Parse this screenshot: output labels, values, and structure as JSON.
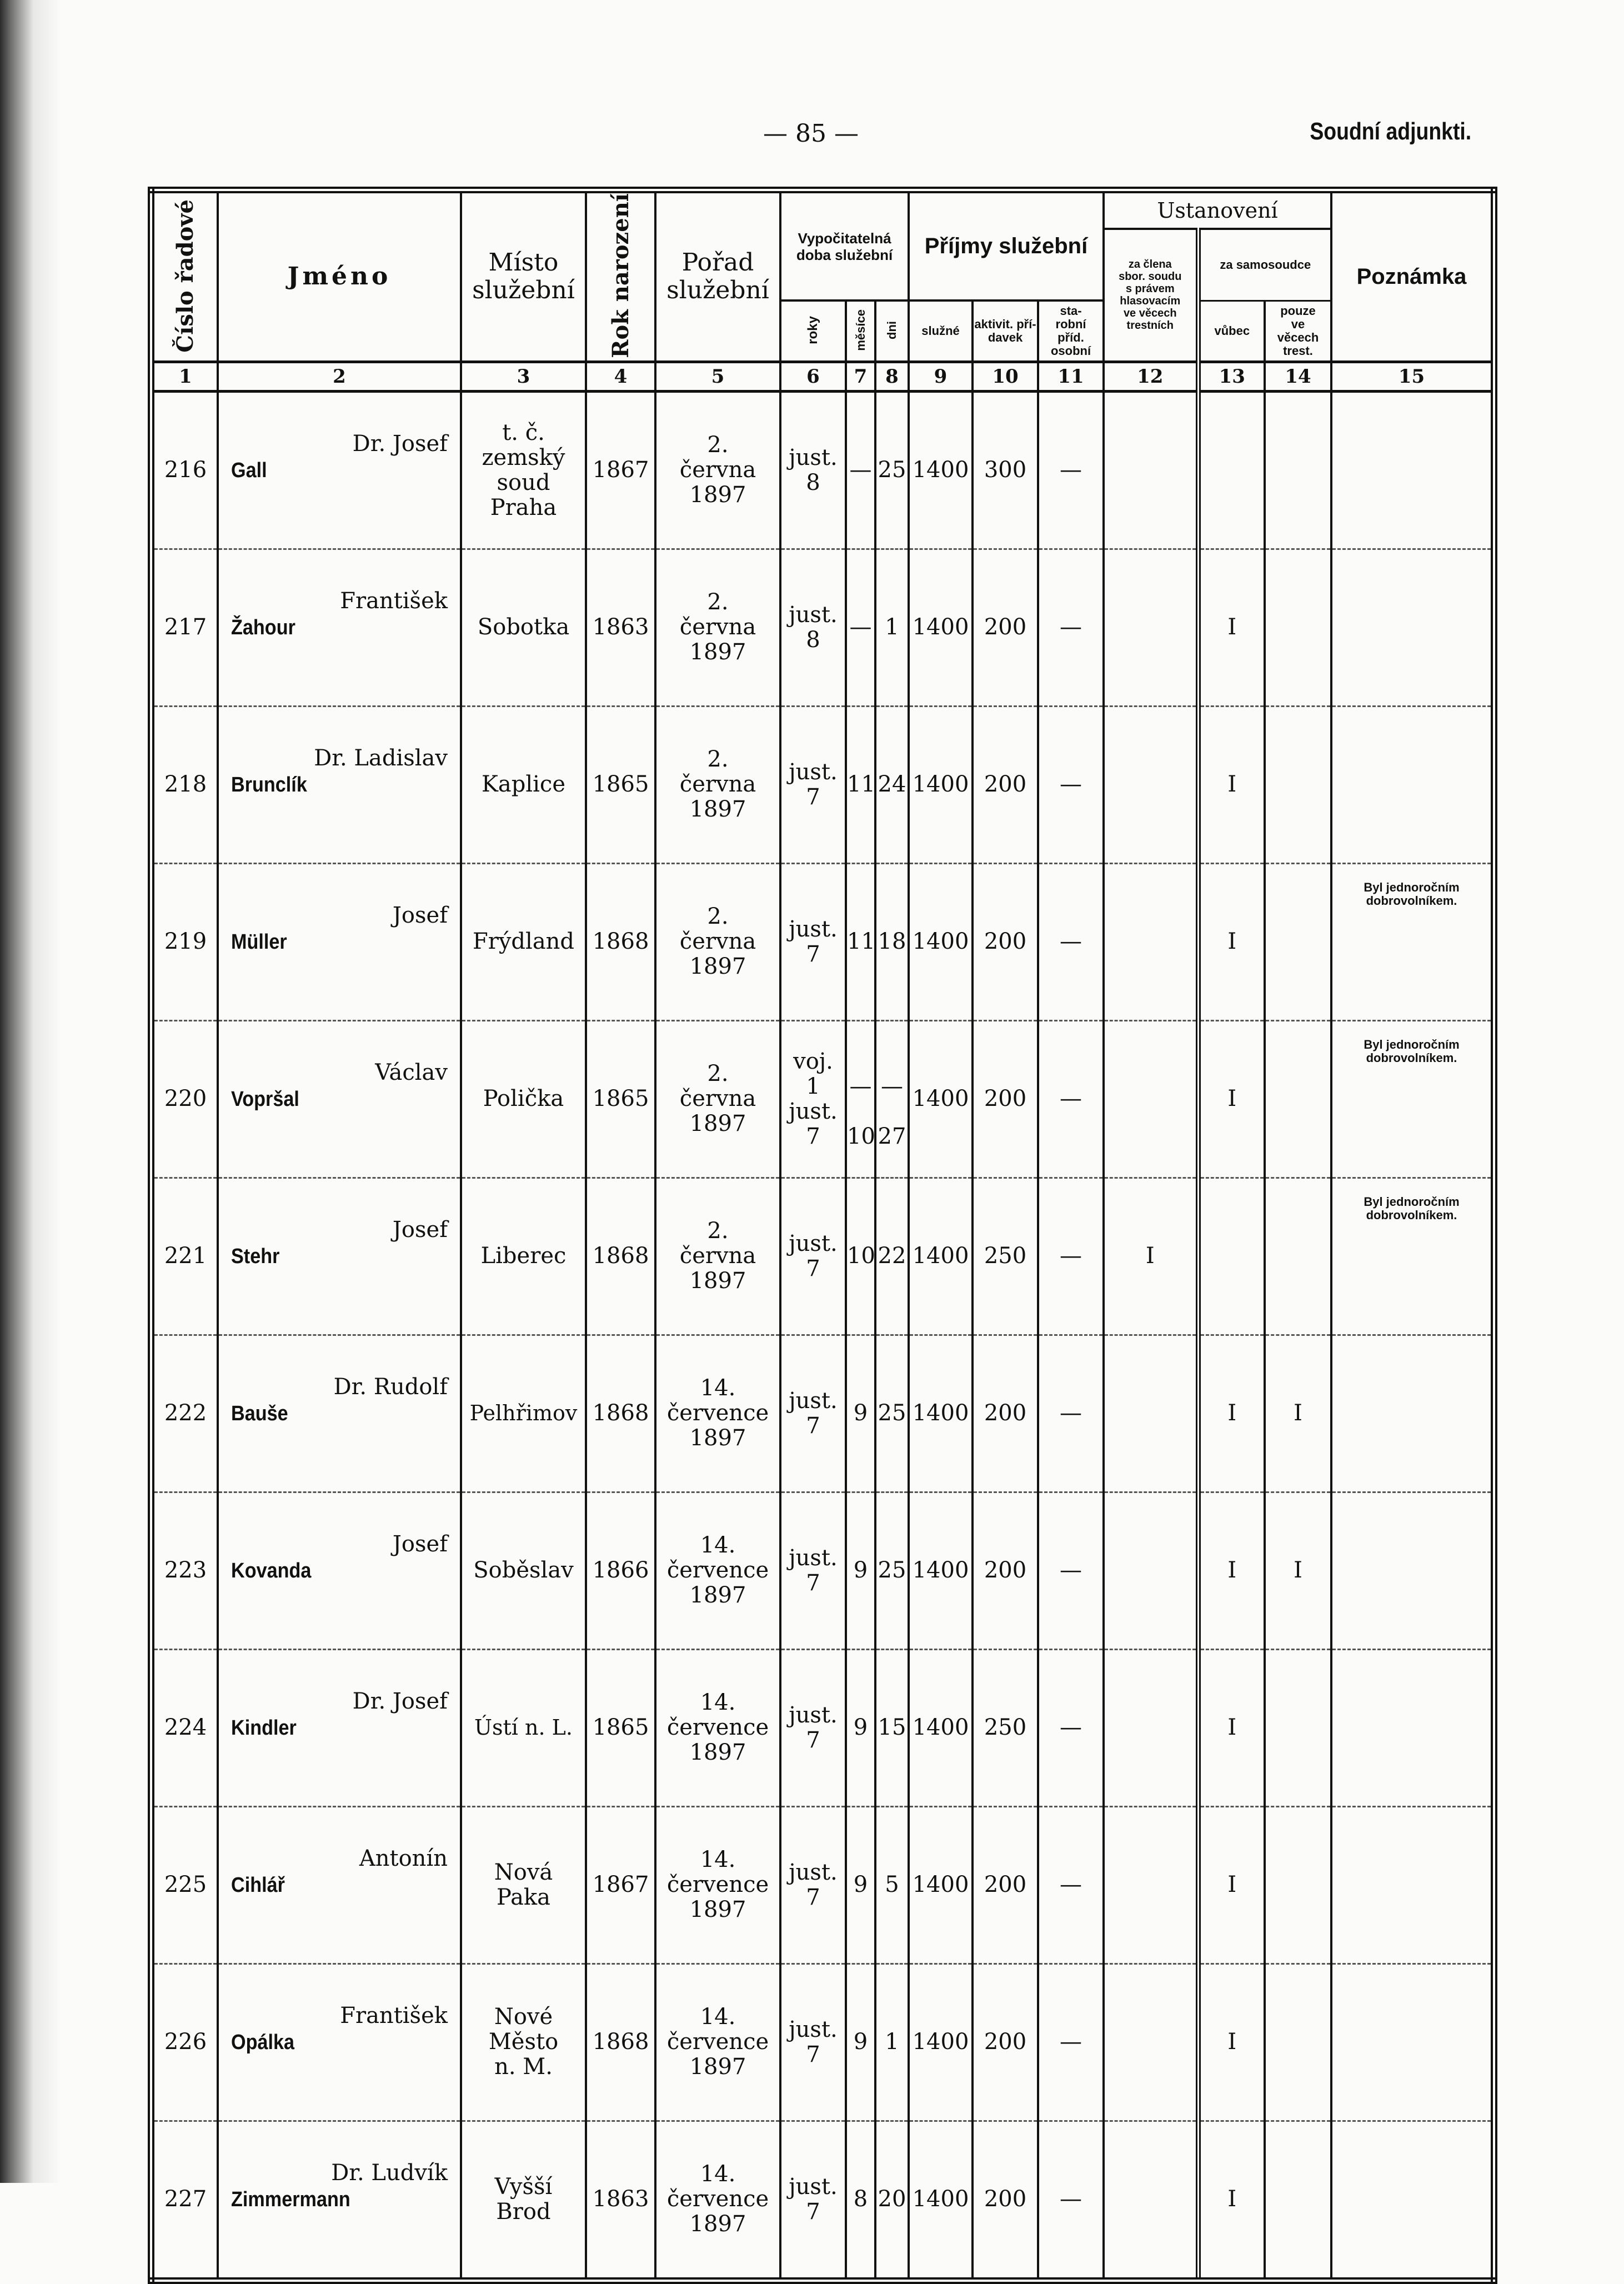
{
  "page": {
    "number": "— 85 —",
    "running_head": "Soudní adjunkti."
  },
  "header": {
    "c1": "Číslo řadové",
    "c2": "Jméno",
    "c3": "Místo\nslužební",
    "c4": "Rok narození",
    "c5": "Pořad\nslužební",
    "c6_8": "Vypočitatelná doba služební",
    "c6": "roky",
    "c7": "měsíce",
    "c8": "dni",
    "c9_11": "Příjmy služební",
    "c9": "služné",
    "c10": "aktivit. pří-\ndavek",
    "c11": "sta-\nrobní\npříd.\nosobní",
    "c12_14": "Ustanovení",
    "c12": "za člena\nsbor. soudu\ns právem\nhlasovacím\nve věcech\ntrestních",
    "c13_14": "za samosoudce",
    "c13": "vůbec",
    "c14": "pouze\nve\nvěcech\ntrest.",
    "c15": "Poznámka"
  },
  "column_numbers": [
    "1",
    "2",
    "3",
    "4",
    "5",
    "6",
    "7",
    "8",
    "9",
    "10",
    "11",
    "12",
    "13",
    "14",
    "15"
  ],
  "rows": [
    {
      "no": "216",
      "first": "Dr. Josef",
      "last": "Gall",
      "place": "t. č.\nzemský\nsoud\nPraha",
      "born": "1867",
      "order": "2.\nčervna\n1897",
      "years": "just.\n8",
      "months": "—",
      "days": "25",
      "salary": "1400",
      "activity": "300",
      "personal": "—",
      "senate": "",
      "judge": "",
      "criminal": "",
      "note": ""
    },
    {
      "no": "217",
      "first": "František",
      "last": "Žahour",
      "place": "Sobotka",
      "born": "1863",
      "order": "2.\nčervna\n1897",
      "years": "just.\n8",
      "months": "—",
      "days": "1",
      "salary": "1400",
      "activity": "200",
      "personal": "—",
      "senate": "",
      "judge": "I",
      "criminal": "",
      "note": ""
    },
    {
      "no": "218",
      "first": "Dr. Ladislav",
      "last": "Brunclík",
      "place": "Kaplice",
      "born": "1865",
      "order": "2.\nčervna\n1897",
      "years": "just.\n7",
      "months": "11",
      "days": "24",
      "salary": "1400",
      "activity": "200",
      "personal": "—",
      "senate": "",
      "judge": "I",
      "criminal": "",
      "note": ""
    },
    {
      "no": "219",
      "first": "Josef",
      "last": "Müller",
      "place": "Frýdland",
      "born": "1868",
      "order": "2.\nčervna\n1897",
      "years": "just.\n7",
      "months": "11",
      "days": "18",
      "salary": "1400",
      "activity": "200",
      "personal": "—",
      "senate": "",
      "judge": "I",
      "criminal": "",
      "note": "Byl jednoročním dobrovolníkem."
    },
    {
      "no": "220",
      "first": "Václav",
      "last": "Vopršal",
      "place": "Polička",
      "born": "1865",
      "order": "2.\nčervna\n1897",
      "years": "voj.\n1\njust.\n7",
      "months": "\n—\n\n10",
      "days": "\n—\n\n27",
      "salary": "1400",
      "activity": "200",
      "personal": "—",
      "senate": "",
      "judge": "I",
      "criminal": "",
      "note": "Byl jednoročním dobrovolníkem."
    },
    {
      "no": "221",
      "first": "Josef",
      "last": "Stehr",
      "place": "Liberec",
      "born": "1868",
      "order": "2.\nčervna\n1897",
      "years": "just.\n7",
      "months": "10",
      "days": "22",
      "salary": "1400",
      "activity": "250",
      "personal": "—",
      "senate": "I",
      "judge": "",
      "criminal": "",
      "note": "Byl jednoročním dobrovolníkem."
    },
    {
      "no": "222",
      "first": "Dr. Rudolf",
      "last": "Bauše",
      "place": "Pelhřimov",
      "born": "1868",
      "order": "14.\nčervence\n1897",
      "years": "just.\n7",
      "months": "9",
      "days": "25",
      "salary": "1400",
      "activity": "200",
      "personal": "—",
      "senate": "",
      "judge": "I",
      "criminal": "I",
      "note": ""
    },
    {
      "no": "223",
      "first": "Josef",
      "last": "Kovanda",
      "place": "Soběslav",
      "born": "1866",
      "order": "14.\nčervence\n1897",
      "years": "just.\n7",
      "months": "9",
      "days": "25",
      "salary": "1400",
      "activity": "200",
      "personal": "—",
      "senate": "",
      "judge": "I",
      "criminal": "I",
      "note": ""
    },
    {
      "no": "224",
      "first": "Dr. Josef",
      "last": "Kindler",
      "place": "Ústí n. L.",
      "born": "1865",
      "order": "14.\nčervence\n1897",
      "years": "just.\n7",
      "months": "9",
      "days": "15",
      "salary": "1400",
      "activity": "250",
      "personal": "—",
      "senate": "",
      "judge": "I",
      "criminal": "",
      "note": ""
    },
    {
      "no": "225",
      "first": "Antonín",
      "last": "Cihlář",
      "place": "Nová\nPaka",
      "born": "1867",
      "order": "14.\nčervence\n1897",
      "years": "just.\n7",
      "months": "9",
      "days": "5",
      "salary": "1400",
      "activity": "200",
      "personal": "—",
      "senate": "",
      "judge": "I",
      "criminal": "",
      "note": ""
    },
    {
      "no": "226",
      "first": "František",
      "last": "Opálka",
      "place": "Nové\nMěsto\nn. M.",
      "born": "1868",
      "order": "14.\nčervence\n1897",
      "years": "just.\n7",
      "months": "9",
      "days": "1",
      "salary": "1400",
      "activity": "200",
      "personal": "—",
      "senate": "",
      "judge": "I",
      "criminal": "",
      "note": ""
    },
    {
      "no": "227",
      "first": "Dr. Ludvík",
      "last": "Zimmermann",
      "place": "Vyšší\nBrod",
      "born": "1863",
      "order": "14.\nčervence\n1897",
      "years": "just.\n7",
      "months": "8",
      "days": "20",
      "salary": "1400",
      "activity": "200",
      "personal": "—",
      "senate": "",
      "judge": "I",
      "criminal": "",
      "note": ""
    }
  ]
}
